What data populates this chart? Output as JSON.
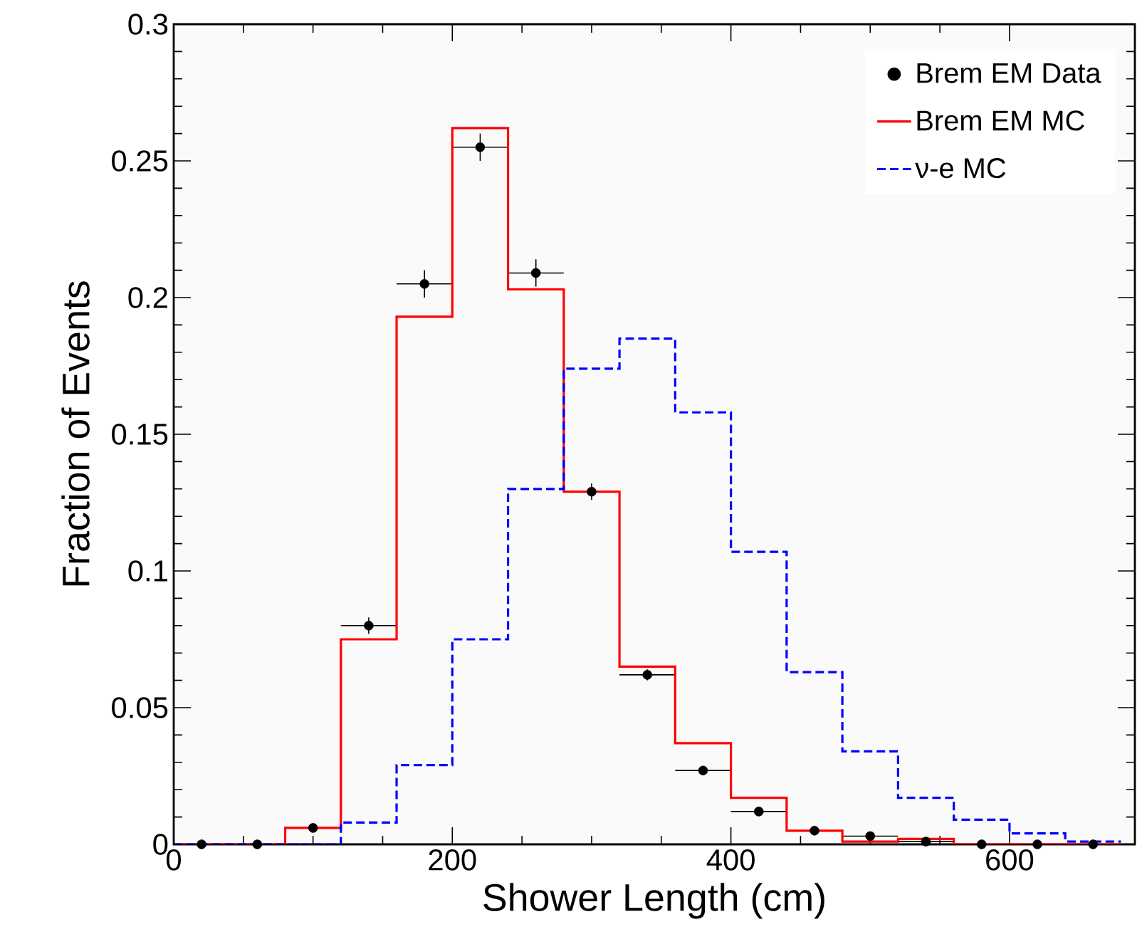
{
  "chart_data": {
    "type": "histogram",
    "xlabel": "Shower Length (cm)",
    "ylabel": "Fraction of Events",
    "bins": [
      0,
      40,
      80,
      120,
      160,
      200,
      240,
      280,
      320,
      360,
      400,
      440,
      480,
      520,
      560,
      600,
      640,
      680
    ],
    "xlim": [
      0,
      690
    ],
    "ylim": [
      0,
      0.3
    ],
    "xticks": [
      0,
      200,
      400,
      600
    ],
    "yticks": [
      0,
      {
        "value": 0.05,
        "label": "0.05"
      },
      {
        "value": 0.1,
        "label": "0.1"
      },
      {
        "value": 0.15,
        "label": "0.15"
      },
      {
        "value": 0.2,
        "label": "0.2"
      },
      {
        "value": 0.25,
        "label": "0.25"
      },
      {
        "value": 0.3,
        "label": "0.3"
      }
    ],
    "legend": "top right",
    "grid": false,
    "series": [
      {
        "name": "Brem EM Data",
        "type": "scatter",
        "marker": "circle",
        "color": "#000000",
        "x": [
          20,
          60,
          100,
          140,
          180,
          220,
          260,
          300,
          340,
          380,
          420,
          460,
          500,
          540,
          580,
          620,
          660
        ],
        "values": [
          0,
          0,
          0.006,
          0.08,
          0.205,
          0.255,
          0.209,
          0.129,
          0.062,
          0.027,
          0.012,
          0.005,
          0.003,
          0.001,
          0,
          0,
          0
        ],
        "errors": [
          null,
          null,
          null,
          0.003,
          0.005,
          0.005,
          0.005,
          0.003,
          0.002,
          0.001,
          0.001,
          null,
          null,
          null,
          null,
          null,
          null
        ],
        "xerrors": [
          null,
          null,
          null,
          20,
          20,
          20,
          20,
          null,
          20,
          20,
          20,
          null,
          20,
          20,
          null,
          null,
          null
        ]
      },
      {
        "name": "Brem EM MC",
        "type": "histogram",
        "color": "#ff0000",
        "line_style": "solid",
        "values": [
          0,
          0,
          0.006,
          0.075,
          0.193,
          0.262,
          0.203,
          0.129,
          0.065,
          0.037,
          0.017,
          0.005,
          0.001,
          0.002,
          0,
          0,
          0
        ]
      },
      {
        "name": "ν-e MC",
        "type": "histogram",
        "color": "#0000ff",
        "line_style": "dashed",
        "values": [
          0,
          0,
          0,
          0.008,
          0.029,
          0.075,
          0.13,
          0.174,
          0.185,
          0.158,
          0.107,
          0.063,
          0.034,
          0.017,
          0.009,
          0.004,
          0.001
        ]
      }
    ]
  }
}
